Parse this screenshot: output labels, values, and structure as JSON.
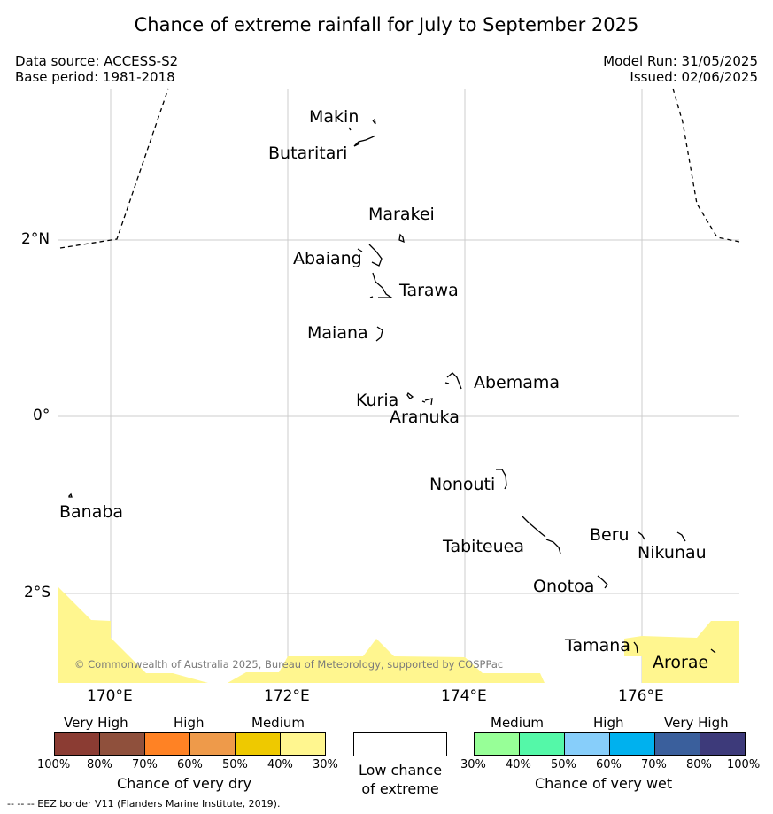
{
  "title": "Chance of extreme rainfall for July to September 2025",
  "data_source": "Data source: ACCESS-S2",
  "base_period": "Base period: 1981-2018",
  "model_run": "Model Run: 31/05/2025",
  "issued": "Issued: 02/06/2025",
  "map": {
    "lat_ticks": [
      "2°N",
      "0°",
      "2°S"
    ],
    "lon_ticks": [
      "170°E",
      "172°E",
      "174°E",
      "176°E"
    ],
    "islands": [
      "Makin",
      "Butaritari",
      "Marakei",
      "Abaiang",
      "Tarawa",
      "Maiana",
      "Abemama",
      "Kuria",
      "Aranuka",
      "Nonouti",
      "Banaba",
      "Tabiteuea",
      "Beru",
      "Nikunau",
      "Onotoa",
      "Tamana",
      "Arorae"
    ],
    "copyright": "© Commonwealth of Australia 2025, Bureau of Meteorology, supported by COSPPac",
    "colors": {
      "medium_dry": "#fff68f",
      "land_outline": "#000000",
      "gridline": "#cccccc",
      "eez_border": "#000000"
    }
  },
  "legend": {
    "dry": {
      "categories": [
        "Very High",
        "High",
        "Medium"
      ],
      "percent_labels": [
        "100%",
        "80%",
        "70%",
        "60%",
        "50%",
        "40%",
        "30%"
      ],
      "colors": [
        "#8b3c33",
        "#8f503c",
        "#ff8224",
        "#ee9a4a",
        "#eec900",
        "#fff68f"
      ],
      "title": "Chance of very dry"
    },
    "neutral": {
      "label_line1": "Low chance",
      "label_line2": "of extreme",
      "color": "#ffffff"
    },
    "wet": {
      "categories": [
        "Medium",
        "High",
        "Very High"
      ],
      "percent_labels": [
        "30%",
        "40%",
        "50%",
        "60%",
        "70%",
        "80%",
        "100%"
      ],
      "colors": [
        "#97ff97",
        "#54f8a8",
        "#87cefa",
        "#00b1ee",
        "#3a5f9c",
        "#3d3a7a"
      ],
      "title": "Chance of very wet"
    }
  },
  "footnote": "--  --  -- EEZ border V11 (Flanders Marine Institute, 2019)."
}
